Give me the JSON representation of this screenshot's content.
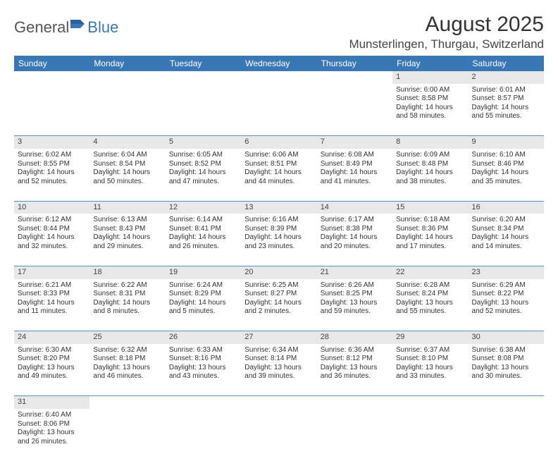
{
  "logo": {
    "text1": "General",
    "text2": "Blue"
  },
  "title": "August 2025",
  "location": "Munsterlingen, Thurgau, Switzerland",
  "colors": {
    "header_bg": "#3a78b5",
    "header_fg": "#ffffff",
    "daynum_bg": "#e8e8e8",
    "border": "#5a8fc0",
    "text": "#333333"
  },
  "weekdays": [
    "Sunday",
    "Monday",
    "Tuesday",
    "Wednesday",
    "Thursday",
    "Friday",
    "Saturday"
  ],
  "weeks": [
    [
      null,
      null,
      null,
      null,
      null,
      {
        "n": "1",
        "sr": "6:00 AM",
        "ss": "8:58 PM",
        "dl": "14 hours and 58 minutes."
      },
      {
        "n": "2",
        "sr": "6:01 AM",
        "ss": "8:57 PM",
        "dl": "14 hours and 55 minutes."
      }
    ],
    [
      {
        "n": "3",
        "sr": "6:02 AM",
        "ss": "8:55 PM",
        "dl": "14 hours and 52 minutes."
      },
      {
        "n": "4",
        "sr": "6:04 AM",
        "ss": "8:54 PM",
        "dl": "14 hours and 50 minutes."
      },
      {
        "n": "5",
        "sr": "6:05 AM",
        "ss": "8:52 PM",
        "dl": "14 hours and 47 minutes."
      },
      {
        "n": "6",
        "sr": "6:06 AM",
        "ss": "8:51 PM",
        "dl": "14 hours and 44 minutes."
      },
      {
        "n": "7",
        "sr": "6:08 AM",
        "ss": "8:49 PM",
        "dl": "14 hours and 41 minutes."
      },
      {
        "n": "8",
        "sr": "6:09 AM",
        "ss": "8:48 PM",
        "dl": "14 hours and 38 minutes."
      },
      {
        "n": "9",
        "sr": "6:10 AM",
        "ss": "8:46 PM",
        "dl": "14 hours and 35 minutes."
      }
    ],
    [
      {
        "n": "10",
        "sr": "6:12 AM",
        "ss": "8:44 PM",
        "dl": "14 hours and 32 minutes."
      },
      {
        "n": "11",
        "sr": "6:13 AM",
        "ss": "8:43 PM",
        "dl": "14 hours and 29 minutes."
      },
      {
        "n": "12",
        "sr": "6:14 AM",
        "ss": "8:41 PM",
        "dl": "14 hours and 26 minutes."
      },
      {
        "n": "13",
        "sr": "6:16 AM",
        "ss": "8:39 PM",
        "dl": "14 hours and 23 minutes."
      },
      {
        "n": "14",
        "sr": "6:17 AM",
        "ss": "8:38 PM",
        "dl": "14 hours and 20 minutes."
      },
      {
        "n": "15",
        "sr": "6:18 AM",
        "ss": "8:36 PM",
        "dl": "14 hours and 17 minutes."
      },
      {
        "n": "16",
        "sr": "6:20 AM",
        "ss": "8:34 PM",
        "dl": "14 hours and 14 minutes."
      }
    ],
    [
      {
        "n": "17",
        "sr": "6:21 AM",
        "ss": "8:33 PM",
        "dl": "14 hours and 11 minutes."
      },
      {
        "n": "18",
        "sr": "6:22 AM",
        "ss": "8:31 PM",
        "dl": "14 hours and 8 minutes."
      },
      {
        "n": "19",
        "sr": "6:24 AM",
        "ss": "8:29 PM",
        "dl": "14 hours and 5 minutes."
      },
      {
        "n": "20",
        "sr": "6:25 AM",
        "ss": "8:27 PM",
        "dl": "14 hours and 2 minutes."
      },
      {
        "n": "21",
        "sr": "6:26 AM",
        "ss": "8:25 PM",
        "dl": "13 hours and 59 minutes."
      },
      {
        "n": "22",
        "sr": "6:28 AM",
        "ss": "8:24 PM",
        "dl": "13 hours and 55 minutes."
      },
      {
        "n": "23",
        "sr": "6:29 AM",
        "ss": "8:22 PM",
        "dl": "13 hours and 52 minutes."
      }
    ],
    [
      {
        "n": "24",
        "sr": "6:30 AM",
        "ss": "8:20 PM",
        "dl": "13 hours and 49 minutes."
      },
      {
        "n": "25",
        "sr": "6:32 AM",
        "ss": "8:18 PM",
        "dl": "13 hours and 46 minutes."
      },
      {
        "n": "26",
        "sr": "6:33 AM",
        "ss": "8:16 PM",
        "dl": "13 hours and 43 minutes."
      },
      {
        "n": "27",
        "sr": "6:34 AM",
        "ss": "8:14 PM",
        "dl": "13 hours and 39 minutes."
      },
      {
        "n": "28",
        "sr": "6:36 AM",
        "ss": "8:12 PM",
        "dl": "13 hours and 36 minutes."
      },
      {
        "n": "29",
        "sr": "6:37 AM",
        "ss": "8:10 PM",
        "dl": "13 hours and 33 minutes."
      },
      {
        "n": "30",
        "sr": "6:38 AM",
        "ss": "8:08 PM",
        "dl": "13 hours and 30 minutes."
      }
    ],
    [
      {
        "n": "31",
        "sr": "6:40 AM",
        "ss": "8:06 PM",
        "dl": "13 hours and 26 minutes."
      },
      null,
      null,
      null,
      null,
      null,
      null
    ]
  ],
  "labels": {
    "sunrise": "Sunrise:",
    "sunset": "Sunset:",
    "daylight": "Daylight:"
  }
}
